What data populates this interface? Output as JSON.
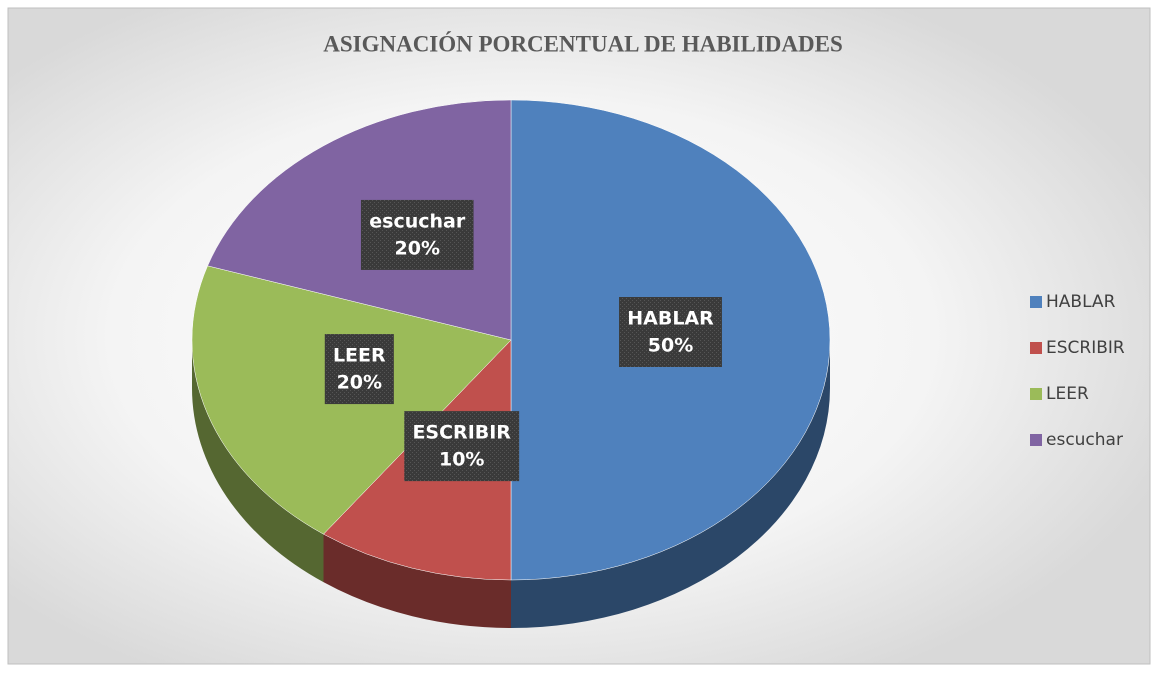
{
  "chart_data": {
    "type": "pie",
    "title": "ASIGNACIÓN PORCENTUAL  DE HABILIDADES",
    "categories": [
      "HABLAR",
      "ESCRIBIR",
      "LEER",
      "escuchar"
    ],
    "values": [
      50,
      10,
      20,
      20
    ],
    "value_labels": [
      "50%",
      "10%",
      "20%",
      "20%"
    ],
    "colors": [
      "#4f81bd",
      "#c0504d",
      "#9bbb59",
      "#8064a2"
    ],
    "legend": "right"
  }
}
